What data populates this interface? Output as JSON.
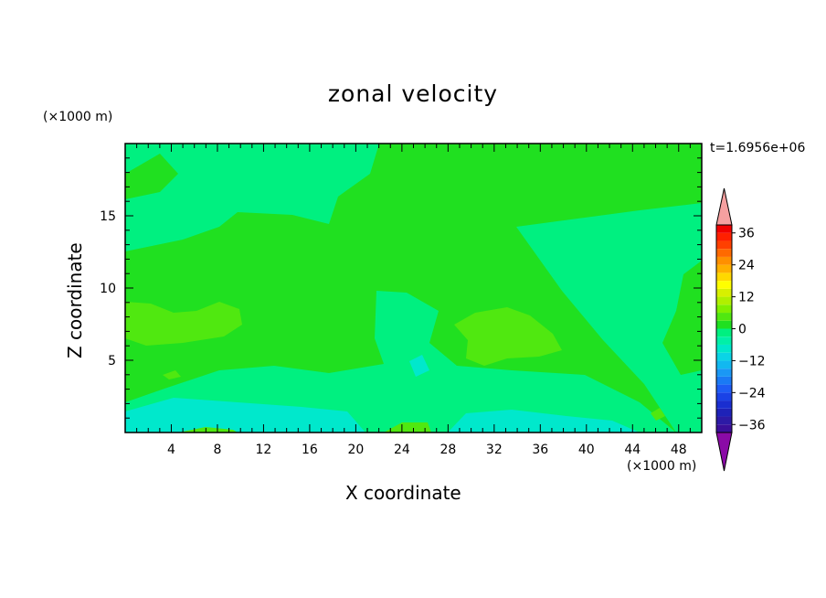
{
  "chart_data": {
    "type": "heatmap",
    "title": "zonal velocity",
    "xlabel": "X coordinate",
    "ylabel": "Z coordinate",
    "x_unit_label": "(×1000 m)",
    "y_unit_label": "(×1000 m)",
    "time_label": "t=1.6956e+06",
    "xlim": [
      0,
      50
    ],
    "ylim": [
      0,
      20
    ],
    "x_ticks": [
      4,
      8,
      12,
      16,
      20,
      24,
      28,
      32,
      36,
      40,
      44,
      48
    ],
    "y_ticks": [
      5,
      10,
      15
    ],
    "colorbar": {
      "levels": [
        -39,
        -36,
        -33,
        -30,
        -27,
        -24,
        -21,
        -18,
        -15,
        -12,
        -9,
        -6,
        -3,
        0,
        3,
        6,
        9,
        12,
        15,
        18,
        21,
        24,
        27,
        30,
        33,
        36,
        39
      ],
      "labels": [
        36,
        24,
        12,
        0,
        -12,
        -24,
        -36
      ],
      "under_color": "#8a0aa6",
      "over_color": "#f5a0a0",
      "colors": [
        "#3a0f9a",
        "#2d1aa6",
        "#1e22b8",
        "#1a2ed0",
        "#1a42e6",
        "#1e5cf5",
        "#1a7af5",
        "#1a98f5",
        "#12b8f0",
        "#0ad4e6",
        "#00e8cc",
        "#00f0a8",
        "#00f080",
        "#20e020",
        "#50e810",
        "#80f000",
        "#b0f000",
        "#d8f000",
        "#ffff00",
        "#ffd800",
        "#ffb000",
        "#ff9000",
        "#ff6a00",
        "#ff4000",
        "#ff2000",
        "#f00000"
      ]
    },
    "field_regions": [
      {
        "value": 1.5,
        "color": "#20e020",
        "desc": "background"
      },
      {
        "value": -1.5,
        "color": "#00f080"
      },
      {
        "value": 4.5,
        "color": "#50e810"
      },
      {
        "value": -4.5,
        "color": "#00f0a8"
      },
      {
        "value": -7.5,
        "color": "#00e8cc"
      }
    ]
  }
}
